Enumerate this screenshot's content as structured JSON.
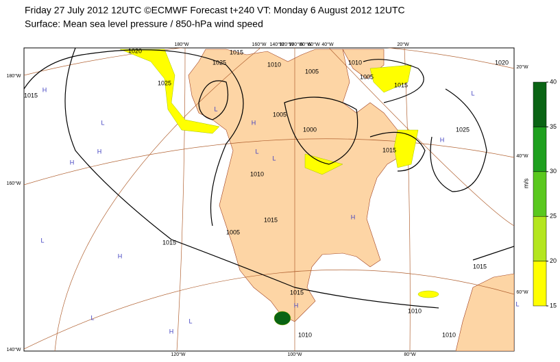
{
  "header": {
    "line1": "Friday 27 July 2012 12UTC ©ECMWF Forecast t+240 VT: Monday 6 August 2012 12UTC",
    "line2": "Surface: Mean sea level pressure / 850-hPa wind speed"
  },
  "legend": {
    "unit": "m/s",
    "ticks": [
      15,
      20,
      25,
      30,
      35,
      40
    ],
    "colors": [
      "#ffff00",
      "#b4e61e",
      "#5ac81e",
      "#1ea01e",
      "#0a6414"
    ]
  },
  "graticule": {
    "top": [
      "180°W",
      "160°W",
      "140°W",
      "120°W",
      "100°W",
      "80°W",
      "60°W",
      "40°W",
      "20°W"
    ],
    "bottom": [
      "120°W",
      "100°W",
      "80°W"
    ],
    "left": [
      "180°W",
      "160°W",
      "140°W"
    ],
    "right": [
      "20°W",
      "40°W",
      "60°W"
    ]
  },
  "contour_labels": [
    "1020",
    "1015",
    "1025",
    "1010",
    "1015",
    "1025",
    "1005",
    "1010",
    "1005",
    "1015",
    "1020",
    "1005",
    "1000",
    "1025",
    "1015",
    "1010",
    "1015",
    "1005",
    "1015",
    "1015",
    "1010",
    "1010",
    "1015",
    "1010"
  ],
  "centres": [
    "H",
    "H",
    "L",
    "H",
    "H",
    "L",
    "L",
    "H",
    "L",
    "H",
    "L",
    "H",
    "H",
    "L",
    "L",
    "H",
    "L",
    "L"
  ]
}
